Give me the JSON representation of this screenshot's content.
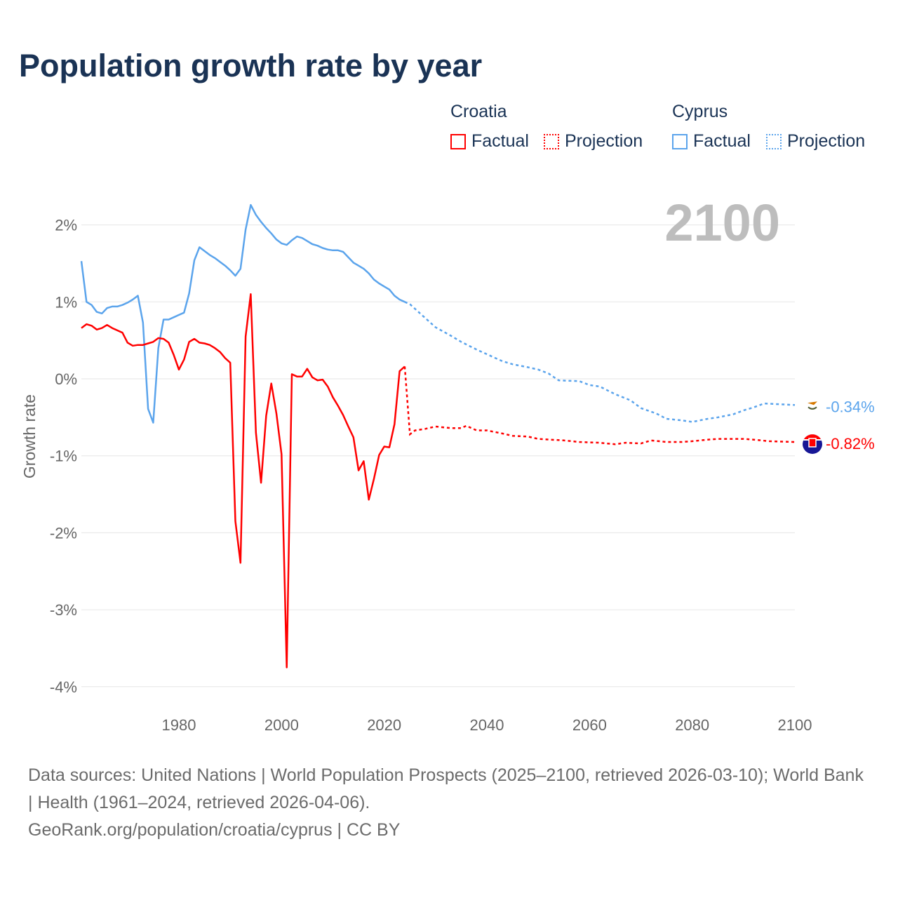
{
  "title": "Population growth rate by year",
  "legend": {
    "groups": [
      {
        "name": "Croatia",
        "color": "#ff0000",
        "factual": "Factual",
        "projection": "Projection"
      },
      {
        "name": "Cyprus",
        "color": "#5ba4ec",
        "factual": "Factual",
        "projection": "Projection"
      }
    ]
  },
  "year_label": "2100",
  "footer": {
    "sources": "Data sources: United Nations | World Population Prospects (2025–2100, retrieved 2026-03-10); World Bank | Health (1961–2024, retrieved 2026-04-06).",
    "credit": "GeoRank.org/population/croatia/cyprus | CC BY"
  },
  "chart_data": {
    "type": "line",
    "title": "Population growth rate by year",
    "xlabel": "",
    "ylabel": "Growth rate",
    "xlim": [
      1961,
      2100
    ],
    "ylim": [
      -4.3,
      2.6
    ],
    "x_ticks": [
      1980,
      2000,
      2020,
      2040,
      2060,
      2080,
      2100
    ],
    "y_ticks": [
      {
        "v": 2,
        "label": "2%"
      },
      {
        "v": 1,
        "label": "1%"
      },
      {
        "v": 0,
        "label": "0%"
      },
      {
        "v": -1,
        "label": "-1%"
      },
      {
        "v": -2,
        "label": "-2%"
      },
      {
        "v": -3,
        "label": "-3%"
      },
      {
        "v": -4,
        "label": "-4%"
      }
    ],
    "grid": true,
    "legend_position": "top-right",
    "series": [
      {
        "name": "Cyprus",
        "color": "#5ba4ec",
        "end_label": "-0.34%",
        "factual": {
          "x": [
            1961,
            1962,
            1963,
            1964,
            1965,
            1966,
            1967,
            1968,
            1969,
            1970,
            1971,
            1972,
            1973,
            1974,
            1975,
            1976,
            1977,
            1978,
            1979,
            1980,
            1981,
            1982,
            1983,
            1984,
            1985,
            1986,
            1987,
            1988,
            1989,
            1990,
            1991,
            1992,
            1993,
            1994,
            1995,
            1996,
            1997,
            1998,
            1999,
            2000,
            2001,
            2002,
            2003,
            2004,
            2005,
            2006,
            2007,
            2008,
            2009,
            2010,
            2011,
            2012,
            2013,
            2014,
            2015,
            2016,
            2017,
            2018,
            2019,
            2020,
            2021,
            2022,
            2023,
            2024
          ],
          "y": [
            1.53,
            1.0,
            0.96,
            0.87,
            0.85,
            0.92,
            0.94,
            0.94,
            0.96,
            0.99,
            1.03,
            1.08,
            0.73,
            -0.39,
            -0.57,
            0.4,
            0.77,
            0.77,
            0.8,
            0.83,
            0.86,
            1.11,
            1.54,
            1.71,
            1.66,
            1.61,
            1.57,
            1.52,
            1.47,
            1.41,
            1.34,
            1.43,
            1.94,
            2.26,
            2.13,
            2.04,
            1.96,
            1.89,
            1.81,
            1.76,
            1.74,
            1.8,
            1.85,
            1.83,
            1.79,
            1.75,
            1.73,
            1.7,
            1.68,
            1.67,
            1.67,
            1.65,
            1.58,
            1.51,
            1.47,
            1.43,
            1.37,
            1.29,
            1.24,
            1.2,
            1.16,
            1.08,
            1.03,
            1.0
          ]
        },
        "projection": {
          "x": [
            2024,
            2025,
            2027,
            2030,
            2033,
            2035,
            2038,
            2040,
            2043,
            2045,
            2048,
            2050,
            2052,
            2054,
            2058,
            2060,
            2062,
            2065,
            2068,
            2070,
            2073,
            2075,
            2078,
            2080,
            2083,
            2085,
            2088,
            2090,
            2092,
            2094,
            2097,
            2100
          ],
          "y": [
            1.0,
            0.97,
            0.85,
            0.67,
            0.56,
            0.48,
            0.38,
            0.32,
            0.23,
            0.19,
            0.15,
            0.12,
            0.07,
            -0.02,
            -0.03,
            -0.08,
            -0.1,
            -0.2,
            -0.28,
            -0.38,
            -0.45,
            -0.52,
            -0.54,
            -0.56,
            -0.52,
            -0.5,
            -0.46,
            -0.41,
            -0.37,
            -0.32,
            -0.33,
            -0.34
          ]
        }
      },
      {
        "name": "Croatia",
        "color": "#ff0000",
        "end_label": "-0.82%",
        "factual": {
          "x": [
            1961,
            1962,
            1963,
            1964,
            1965,
            1966,
            1967,
            1968,
            1969,
            1970,
            1971,
            1972,
            1973,
            1974,
            1975,
            1976,
            1977,
            1978,
            1979,
            1980,
            1981,
            1982,
            1983,
            1984,
            1985,
            1986,
            1987,
            1988,
            1989,
            1990,
            1991,
            1992,
            1993,
            1994,
            1995,
            1996,
            1997,
            1998,
            1999,
            2000,
            2001,
            2002,
            2003,
            2004,
            2005,
            2006,
            2007,
            2008,
            2009,
            2010,
            2011,
            2012,
            2013,
            2014,
            2015,
            2016,
            2017,
            2018,
            2019,
            2020,
            2021,
            2022,
            2023,
            2024
          ],
          "y": [
            0.66,
            0.71,
            0.69,
            0.64,
            0.66,
            0.7,
            0.66,
            0.63,
            0.6,
            0.47,
            0.43,
            0.44,
            0.44,
            0.46,
            0.48,
            0.53,
            0.52,
            0.47,
            0.31,
            0.12,
            0.25,
            0.48,
            0.52,
            0.47,
            0.46,
            0.44,
            0.4,
            0.35,
            0.27,
            0.21,
            -1.85,
            -2.39,
            0.55,
            1.1,
            -0.7,
            -1.35,
            -0.48,
            -0.06,
            -0.45,
            -0.98,
            -3.75,
            0.06,
            0.03,
            0.03,
            0.13,
            0.02,
            -0.02,
            -0.01,
            -0.1,
            -0.24,
            -0.35,
            -0.47,
            -0.62,
            -0.76,
            -1.19,
            -1.07,
            -1.57,
            -1.3,
            -0.99,
            -0.88,
            -0.89,
            -0.59,
            0.1,
            0.16
          ]
        },
        "projection": {
          "x": [
            2024,
            2025,
            2026,
            2028,
            2030,
            2033,
            2035,
            2036,
            2038,
            2040,
            2043,
            2045,
            2048,
            2050,
            2055,
            2058,
            2062,
            2065,
            2067,
            2070,
            2072,
            2075,
            2078,
            2080,
            2083,
            2085,
            2088,
            2090,
            2092,
            2095,
            2100
          ],
          "y": [
            0.16,
            -0.72,
            -0.67,
            -0.65,
            -0.62,
            -0.64,
            -0.64,
            -0.61,
            -0.67,
            -0.67,
            -0.71,
            -0.74,
            -0.75,
            -0.78,
            -0.8,
            -0.82,
            -0.83,
            -0.85,
            -0.83,
            -0.84,
            -0.8,
            -0.82,
            -0.82,
            -0.81,
            -0.79,
            -0.78,
            -0.78,
            -0.78,
            -0.79,
            -0.81,
            -0.82
          ]
        }
      }
    ]
  }
}
